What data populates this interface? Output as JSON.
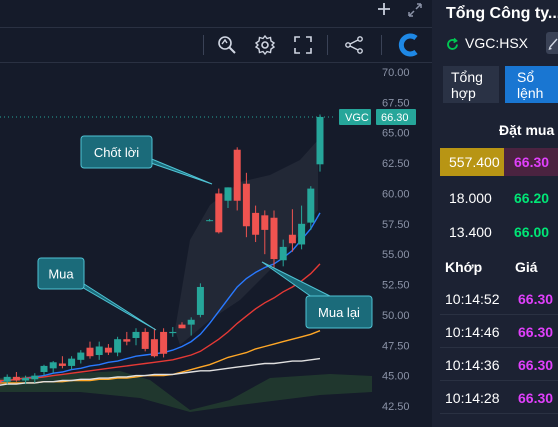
{
  "chart": {
    "y_axis_labels": [
      "70.00",
      "67.50",
      "65.00",
      "62.50",
      "60.00",
      "57.50",
      "55.00",
      "52.50",
      "50.00",
      "47.50",
      "45.00",
      "42.50"
    ],
    "symbol_tag": "VGC",
    "last_price_tag": "66.30",
    "annotations": {
      "take_profit": "Chốt lời",
      "buy": "Mua",
      "rebuy": "Mua lại"
    },
    "colors": {
      "up": "#26a69a",
      "down": "#ef5350",
      "ma_blue": "#2979ff",
      "ma_red": "#e53935",
      "ma_orange": "#ffa726",
      "ma_white": "#e0e0e0",
      "callout": "#1b6b7a"
    }
  },
  "chart_data": {
    "type": "candlestick",
    "ylim": [
      42.5,
      70.0
    ],
    "candles": [
      {
        "o": 44.6,
        "h": 45.0,
        "l": 44.2,
        "c": 44.4
      },
      {
        "o": 44.5,
        "h": 45.1,
        "l": 44.3,
        "c": 44.9
      },
      {
        "o": 44.9,
        "h": 45.3,
        "l": 44.5,
        "c": 44.6
      },
      {
        "o": 44.6,
        "h": 45.0,
        "l": 44.3,
        "c": 44.8
      },
      {
        "o": 44.7,
        "h": 45.2,
        "l": 44.4,
        "c": 45.0
      },
      {
        "o": 45.3,
        "h": 45.9,
        "l": 45.0,
        "c": 45.8
      },
      {
        "o": 45.6,
        "h": 46.2,
        "l": 45.2,
        "c": 46.1
      },
      {
        "o": 46.0,
        "h": 46.6,
        "l": 45.6,
        "c": 45.8
      },
      {
        "o": 45.8,
        "h": 46.6,
        "l": 45.5,
        "c": 46.4
      },
      {
        "o": 46.3,
        "h": 47.1,
        "l": 46.0,
        "c": 46.9
      },
      {
        "o": 47.3,
        "h": 47.8,
        "l": 46.4,
        "c": 46.6
      },
      {
        "o": 46.7,
        "h": 47.8,
        "l": 46.3,
        "c": 47.4
      },
      {
        "o": 47.3,
        "h": 47.6,
        "l": 46.7,
        "c": 46.9
      },
      {
        "o": 46.9,
        "h": 48.2,
        "l": 46.6,
        "c": 48.0
      },
      {
        "o": 48.0,
        "h": 48.6,
        "l": 47.5,
        "c": 47.8
      },
      {
        "o": 48.1,
        "h": 48.9,
        "l": 47.5,
        "c": 48.6
      },
      {
        "o": 48.6,
        "h": 48.9,
        "l": 47.0,
        "c": 47.2
      },
      {
        "o": 48.0,
        "h": 48.9,
        "l": 46.5,
        "c": 46.6
      },
      {
        "o": 48.6,
        "h": 48.9,
        "l": 46.5,
        "c": 46.8
      },
      {
        "o": 48.5,
        "h": 49.0,
        "l": 48.2,
        "c": 48.6
      },
      {
        "o": 49.2,
        "h": 49.4,
        "l": 48.9,
        "c": 48.9
      },
      {
        "o": 49.2,
        "h": 49.8,
        "l": 48.3,
        "c": 49.6
      },
      {
        "o": 50.0,
        "h": 52.6,
        "l": 49.8,
        "c": 52.3
      },
      {
        "o": 57.8,
        "h": 57.9,
        "l": 57.7,
        "c": 57.8
      },
      {
        "o": 60.0,
        "h": 60.4,
        "l": 56.7,
        "c": 56.8
      },
      {
        "o": 59.4,
        "h": 60.5,
        "l": 58.8,
        "c": 60.5
      },
      {
        "o": 63.6,
        "h": 63.8,
        "l": 58.6,
        "c": 59.4
      },
      {
        "o": 60.8,
        "h": 61.7,
        "l": 56.4,
        "c": 57.3
      },
      {
        "o": 58.4,
        "h": 59.0,
        "l": 56.0,
        "c": 56.6
      },
      {
        "o": 58.2,
        "h": 58.6,
        "l": 55.0,
        "c": 57.0
      },
      {
        "o": 58.0,
        "h": 58.6,
        "l": 53.8,
        "c": 54.6
      },
      {
        "o": 54.5,
        "h": 56.2,
        "l": 54.0,
        "c": 55.6
      },
      {
        "o": 56.6,
        "h": 58.7,
        "l": 55.2,
        "c": 55.9
      },
      {
        "o": 55.8,
        "h": 59.0,
        "l": 55.4,
        "c": 57.5
      },
      {
        "o": 57.6,
        "h": 60.6,
        "l": 57.0,
        "c": 60.4
      },
      {
        "o": 62.4,
        "h": 66.5,
        "l": 61.8,
        "c": 66.3
      }
    ],
    "moving_averages": [
      {
        "name": "",
        "color": "#2979ff",
        "values": [
          44.5,
          44.6,
          44.7,
          44.8,
          44.9,
          45.0,
          45.2,
          45.3,
          45.5,
          45.6,
          45.8,
          45.9,
          46.1,
          46.2,
          46.4,
          46.6,
          46.7,
          46.8,
          46.9,
          47.1,
          47.4,
          47.8,
          48.4,
          49.3,
          50.3,
          51.3,
          52.3,
          53.0,
          53.5,
          53.9,
          54.2,
          54.7,
          55.3,
          56.2,
          57.1,
          58.4
        ]
      },
      {
        "name": "",
        "color": "#e53935",
        "values": [
          44.6,
          44.6,
          44.7,
          44.8,
          44.8,
          44.9,
          45.0,
          45.1,
          45.2,
          45.3,
          45.4,
          45.5,
          45.6,
          45.7,
          45.8,
          45.9,
          46.0,
          46.1,
          46.2,
          46.3,
          46.5,
          46.7,
          47.0,
          47.5,
          48.0,
          48.6,
          49.3,
          49.9,
          50.5,
          51.0,
          51.4,
          51.9,
          52.3,
          52.8,
          53.4,
          54.2
        ]
      },
      {
        "name": "",
        "color": "#ffa726",
        "values": [
          44.4,
          44.4,
          44.4,
          44.4,
          44.4,
          44.5,
          44.5,
          44.5,
          44.6,
          44.6,
          44.6,
          44.7,
          44.7,
          44.8,
          44.8,
          44.9,
          45.0,
          45.0,
          45.0,
          45.1,
          45.3,
          45.5,
          45.7,
          45.9,
          46.2,
          46.5,
          46.7,
          46.9,
          47.2,
          47.4,
          47.6,
          47.8,
          48.0,
          48.2,
          48.4,
          48.7
        ]
      },
      {
        "name": "",
        "color": "#e0e0e0",
        "values": [
          44.2,
          44.3,
          44.3,
          44.4,
          44.4,
          44.5,
          44.5,
          44.6,
          44.6,
          44.7,
          44.7,
          44.8,
          44.8,
          44.9,
          44.9,
          45.0,
          45.0,
          45.1,
          45.1,
          45.1,
          45.2,
          45.3,
          45.4,
          45.4,
          45.5,
          45.6,
          45.7,
          45.8,
          45.9,
          46.0,
          46.0,
          46.1,
          46.2,
          46.2,
          46.3,
          46.4
        ]
      }
    ]
  },
  "side": {
    "company": "Tổng Công ty...",
    "ticker": "VGC:HSX",
    "tabs": {
      "general": "Tổng hợp",
      "orderbook": "Sổ lệnh"
    },
    "bid_header": "Đặt mua",
    "bids": [
      {
        "volume": "557.400",
        "price": "66.30",
        "price_color": "#e040fb",
        "highlight": "#b89514"
      },
      {
        "volume": "18.000",
        "price": "66.20",
        "price_color": "#00e676",
        "highlight": ""
      },
      {
        "volume": "13.400",
        "price": "66.00",
        "price_color": "#00e676",
        "highlight": ""
      }
    ],
    "trade_headers": {
      "time": "Khớp",
      "price": "Giá"
    },
    "trades": [
      {
        "time": "10:14:52",
        "price": "66.30"
      },
      {
        "time": "10:14:46",
        "price": "66.30"
      },
      {
        "time": "10:14:36",
        "price": "66.30"
      },
      {
        "time": "10:14:28",
        "price": "66.30"
      }
    ]
  },
  "toolbar": {
    "icons": [
      "plus-icon",
      "expand-icon",
      "zoom-icon",
      "gear-icon",
      "fullscreen-icon",
      "share-icon",
      "brand-logo-icon"
    ]
  }
}
